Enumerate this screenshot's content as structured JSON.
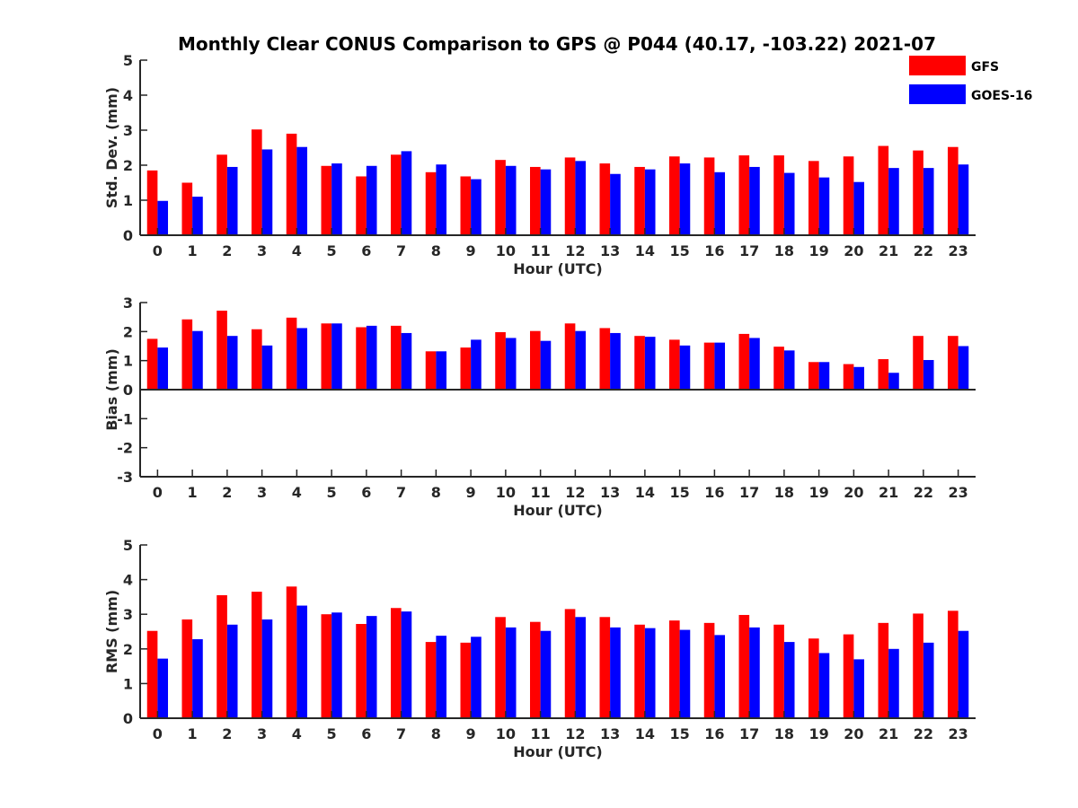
{
  "title": "Monthly Clear CONUS Comparison to GPS @ P044 (40.17, -103.22) 2021-07",
  "legend": [
    {
      "name": "GFS",
      "color": "#ff0000"
    },
    {
      "name": "GOES-16",
      "color": "#0000ff"
    }
  ],
  "chart_data": [
    {
      "type": "bar",
      "title": "Monthly Clear CONUS Comparison to GPS @ P044 (40.17, -103.22) 2021-07",
      "xlabel": "Hour (UTC)",
      "ylabel": "Std. Dev. (mm)",
      "ylim": [
        0,
        5
      ],
      "yticks": [
        "0",
        "1",
        "2",
        "3",
        "4",
        "5"
      ],
      "categories": [
        "0",
        "1",
        "2",
        "3",
        "4",
        "5",
        "6",
        "7",
        "8",
        "9",
        "10",
        "11",
        "12",
        "13",
        "14",
        "15",
        "16",
        "17",
        "18",
        "19",
        "20",
        "21",
        "22",
        "23"
      ],
      "series": [
        {
          "name": "GFS",
          "color": "#ff0000",
          "values": [
            1.85,
            1.5,
            2.3,
            3.02,
            2.9,
            1.98,
            1.68,
            2.3,
            1.8,
            1.68,
            2.15,
            1.95,
            2.22,
            2.05,
            1.95,
            2.25,
            2.22,
            2.28,
            2.28,
            2.12,
            2.25,
            2.55,
            2.42,
            2.52
          ]
        },
        {
          "name": "GOES-16",
          "color": "#0000ff",
          "values": [
            0.98,
            1.1,
            1.95,
            2.45,
            2.52,
            2.05,
            1.98,
            2.4,
            2.02,
            1.6,
            1.98,
            1.88,
            2.12,
            1.75,
            1.88,
            2.05,
            1.8,
            1.95,
            1.78,
            1.65,
            1.52,
            1.92,
            1.92,
            2.02
          ]
        }
      ]
    },
    {
      "type": "bar",
      "xlabel": "Hour (UTC)",
      "ylabel": "Bias (mm)",
      "ylim": [
        -3,
        3
      ],
      "yticks": [
        "-3",
        "-2",
        "-1",
        "0",
        "1",
        "2",
        "3"
      ],
      "categories": [
        "0",
        "1",
        "2",
        "3",
        "4",
        "5",
        "6",
        "7",
        "8",
        "9",
        "10",
        "11",
        "12",
        "13",
        "14",
        "15",
        "16",
        "17",
        "18",
        "19",
        "20",
        "21",
        "22",
        "23"
      ],
      "series": [
        {
          "name": "GFS",
          "color": "#ff0000",
          "values": [
            1.75,
            2.42,
            2.72,
            2.08,
            2.48,
            2.28,
            2.15,
            2.2,
            1.32,
            1.45,
            1.98,
            2.02,
            2.28,
            2.12,
            1.85,
            1.72,
            1.62,
            1.92,
            1.48,
            0.95,
            0.88,
            1.05,
            1.85,
            1.85
          ]
        },
        {
          "name": "GOES-16",
          "color": "#0000ff",
          "values": [
            1.45,
            2.02,
            1.85,
            1.52,
            2.12,
            2.28,
            2.2,
            1.95,
            1.32,
            1.72,
            1.78,
            1.68,
            2.02,
            1.95,
            1.82,
            1.52,
            1.62,
            1.78,
            1.35,
            0.95,
            0.78,
            0.58,
            1.02,
            1.5
          ]
        }
      ]
    },
    {
      "type": "bar",
      "xlabel": "Hour (UTC)",
      "ylabel": "RMS (mm)",
      "ylim": [
        0,
        5
      ],
      "yticks": [
        "0",
        "1",
        "2",
        "3",
        "4",
        "5"
      ],
      "categories": [
        "0",
        "1",
        "2",
        "3",
        "4",
        "5",
        "6",
        "7",
        "8",
        "9",
        "10",
        "11",
        "12",
        "13",
        "14",
        "15",
        "16",
        "17",
        "18",
        "19",
        "20",
        "21",
        "22",
        "23"
      ],
      "series": [
        {
          "name": "GFS",
          "color": "#ff0000",
          "values": [
            2.52,
            2.85,
            3.55,
            3.65,
            3.8,
            3.0,
            2.72,
            3.18,
            2.2,
            2.18,
            2.92,
            2.78,
            3.15,
            2.92,
            2.7,
            2.82,
            2.75,
            2.98,
            2.7,
            2.3,
            2.42,
            2.75,
            3.02,
            3.1
          ]
        },
        {
          "name": "GOES-16",
          "color": "#0000ff",
          "values": [
            1.72,
            2.28,
            2.7,
            2.85,
            3.25,
            3.05,
            2.95,
            3.08,
            2.38,
            2.35,
            2.62,
            2.52,
            2.92,
            2.62,
            2.6,
            2.55,
            2.4,
            2.62,
            2.2,
            1.88,
            1.7,
            2.0,
            2.18,
            2.52
          ]
        }
      ]
    }
  ]
}
